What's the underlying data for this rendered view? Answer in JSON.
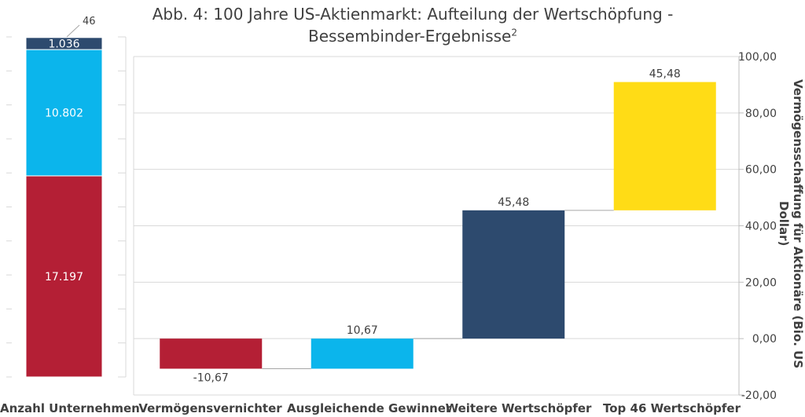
{
  "chart_data": [
    {
      "type": "bar",
      "stacked": true,
      "categories": [
        "Anzahl Unternehmen"
      ],
      "series": [
        {
          "value": 17197,
          "label": "17.197",
          "color": "#B41F35"
        },
        {
          "value": 10802,
          "label": "10.802",
          "color": "#0BB5EC"
        },
        {
          "value": 1036,
          "label": "1.036",
          "color": "#2D4A6E"
        },
        {
          "value": 46,
          "label": "46",
          "color": "#FFDC16"
        }
      ]
    },
    {
      "type": "bar",
      "subtype": "waterfall",
      "title": "Abb. 4: 100 Jahre US-Aktienmarkt: Aufteilung der Wertschöpfung -",
      "title_line2": "Bessembinder-Ergebnisse",
      "title_superscript": "2",
      "ylabel": "Vermögensschaffung für Aktionäre (Bio. US Dollar)",
      "ylim": [
        -20,
        100
      ],
      "yticks": [
        "-20,00",
        "0,00",
        "20,00",
        "40,00",
        "60,00",
        "80,00",
        "100,00"
      ],
      "y_axis_position": "right",
      "grid": true,
      "categories": [
        "Vermögensvernichter",
        "Ausgleichende Gewinner",
        "Weitere Wertschöpfer",
        "Top 46 Wertschöpfer"
      ],
      "bars": [
        {
          "start": 0,
          "end": -10.67,
          "label": "-10,67",
          "color": "#B41F35"
        },
        {
          "start": -10.67,
          "end": 0,
          "label": "10,67",
          "color": "#0BB5EC"
        },
        {
          "start": 0,
          "end": 45.48,
          "label": "45,48",
          "color": "#2D4A6E"
        },
        {
          "start": 45.48,
          "end": 90.96,
          "label": "45,48",
          "color": "#FFDC16"
        }
      ]
    }
  ]
}
